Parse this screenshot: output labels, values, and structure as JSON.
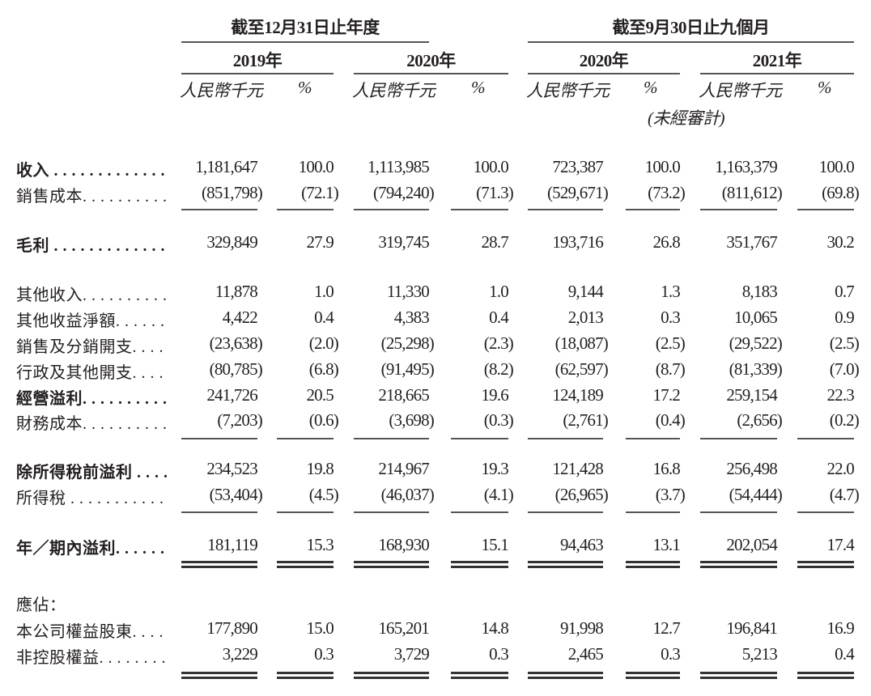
{
  "header": {
    "group_annual": "截至12月31日止年度",
    "group_nine_months": "截至9月30日止九個月",
    "years": [
      "2019年",
      "2020年",
      "2020年",
      "2021年"
    ],
    "unit_rmb": "人民幣千元",
    "unit_pct": "%",
    "unaudited": "(未經審計)"
  },
  "rows": [
    {
      "label": "收入 . . . . . . . . . . . . .",
      "bold": true,
      "values": [
        "1,181,647",
        "100.0",
        "1,113,985",
        "100.0",
        "723,387",
        "100.0",
        "1,163,379",
        "100.0"
      ]
    },
    {
      "label": "銷售成本. . . . . . . . . .",
      "bold": false,
      "values": [
        "(851,798)",
        "(72.1)",
        "(794,240)",
        "(71.3)",
        "(529,671)",
        "(73.2)",
        "(811,612)",
        "(69.8)"
      ]
    },
    {
      "label": "毛利 . . . . . . . . . . . . .",
      "bold": true,
      "values": [
        "329,849",
        "27.9",
        "319,745",
        "28.7",
        "193,716",
        "26.8",
        "351,767",
        "30.2"
      ]
    },
    {
      "label": "其他收入. . . . . . . . . .",
      "bold": false,
      "values": [
        "11,878",
        "1.0",
        "11,330",
        "1.0",
        "9,144",
        "1.3",
        "8,183",
        "0.7"
      ]
    },
    {
      "label": "其他收益淨額. . . . . .",
      "bold": false,
      "values": [
        "4,422",
        "0.4",
        "4,383",
        "0.4",
        "2,013",
        "0.3",
        "10,065",
        "0.9"
      ]
    },
    {
      "label": "銷售及分銷開支. . . .",
      "bold": false,
      "values": [
        "(23,638)",
        "(2.0)",
        "(25,298)",
        "(2.3)",
        "(18,087)",
        "(2.5)",
        "(29,522)",
        "(2.5)"
      ]
    },
    {
      "label": "行政及其他開支. . . .",
      "bold": false,
      "values": [
        "(80,785)",
        "(6.8)",
        "(91,495)",
        "(8.2)",
        "(62,597)",
        "(8.7)",
        "(81,339)",
        "(7.0)"
      ]
    },
    {
      "label": "經營溢利. . . . . . . . . .",
      "bold": true,
      "values": [
        "241,726",
        "20.5",
        "218,665",
        "19.6",
        "124,189",
        "17.2",
        "259,154",
        "22.3"
      ]
    },
    {
      "label": "財務成本. . . . . . . . . .",
      "bold": false,
      "values": [
        "(7,203)",
        "(0.6)",
        "(3,698)",
        "(0.3)",
        "(2,761)",
        "(0.4)",
        "(2,656)",
        "(0.2)"
      ]
    },
    {
      "label": "除所得稅前溢利 . . . .",
      "bold": true,
      "values": [
        "234,523",
        "19.8",
        "214,967",
        "19.3",
        "121,428",
        "16.8",
        "256,498",
        "22.0"
      ]
    },
    {
      "label": "所得稅 . . . . . . . . . . .",
      "bold": false,
      "values": [
        "(53,404)",
        "(4.5)",
        "(46,037)",
        "(4.1)",
        "(26,965)",
        "(3.7)",
        "(54,444)",
        "(4.7)"
      ]
    },
    {
      "label": "年／期內溢利. . . . . .",
      "bold": true,
      "values": [
        "181,119",
        "15.3",
        "168,930",
        "15.1",
        "94,463",
        "13.1",
        "202,054",
        "17.4"
      ]
    },
    {
      "label": "應佔：",
      "bold": false,
      "values": [
        "",
        "",
        "",
        "",
        "",
        "",
        "",
        ""
      ]
    },
    {
      "label": "本公司權益股東. . . .",
      "bold": false,
      "values": [
        "177,890",
        "15.0",
        "165,201",
        "14.8",
        "91,998",
        "12.7",
        "196,841",
        "16.9"
      ]
    },
    {
      "label": "非控股權益. . . . . . . .",
      "bold": false,
      "values": [
        "3,229",
        "0.3",
        "3,729",
        "0.3",
        "2,465",
        "0.3",
        "5,213",
        "0.4"
      ]
    }
  ]
}
